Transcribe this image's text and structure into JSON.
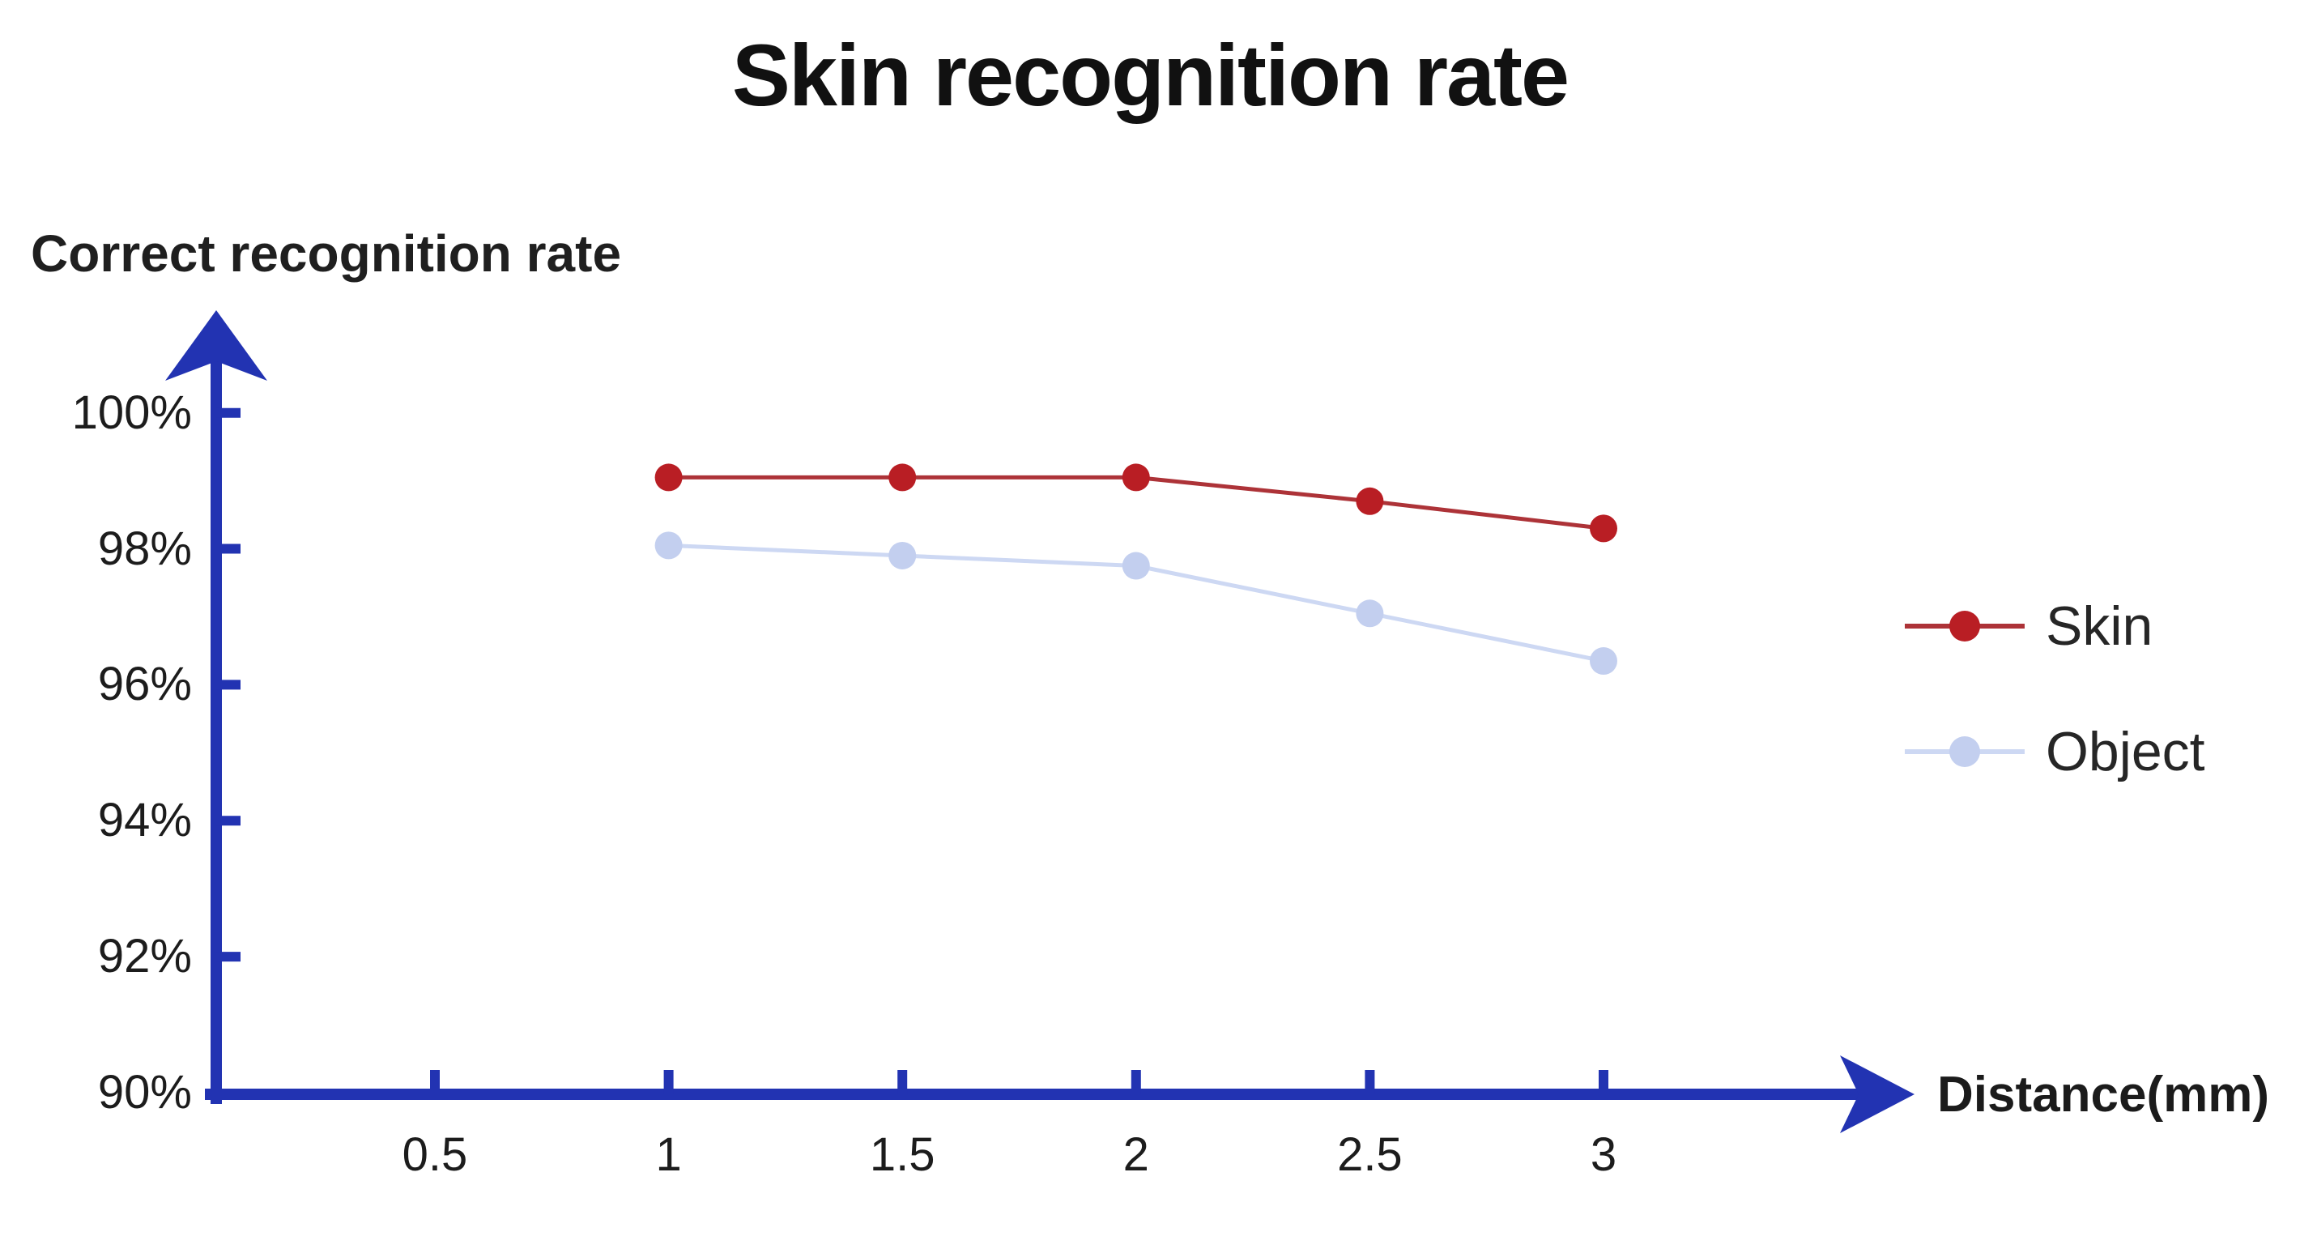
{
  "chart": {
    "title": "Skin recognition rate",
    "y_axis_title": "Correct recognition rate",
    "x_axis_title": "Distance(mm)"
  },
  "chart_data": {
    "type": "line",
    "title": "Skin recognition rate",
    "xlabel": "Distance(mm)",
    "ylabel": "Correct recognition rate",
    "x": [
      1,
      1.5,
      2,
      2.5,
      3
    ],
    "x_ticks": [
      {
        "label": "0.5",
        "value": 0.5
      },
      {
        "label": "1",
        "value": 1
      },
      {
        "label": "1.5",
        "value": 1.5
      },
      {
        "label": "2",
        "value": 2
      },
      {
        "label": "2.5",
        "value": 2.5
      },
      {
        "label": "3",
        "value": 3
      }
    ],
    "y_ticks": [
      {
        "label": "100%",
        "value": 100
      },
      {
        "label": "98%",
        "value": 98
      },
      {
        "label": "96%",
        "value": 96
      },
      {
        "label": "94%",
        "value": 94
      },
      {
        "label": "92%",
        "value": 92
      },
      {
        "label": "90%",
        "value": 90
      }
    ],
    "ylim": [
      90,
      101.5
    ],
    "xlim": [
      0,
      3.6
    ],
    "grid": false,
    "legend_position": "right",
    "unit": "%",
    "series": [
      {
        "name": "Skin",
        "color": "#B91E24",
        "line_color": "#AD3338",
        "values": [
          99.05,
          99.05,
          99.05,
          98.7,
          98.3
        ]
      },
      {
        "name": "Object",
        "color": "#C3CFEF",
        "line_color": "#CDD8F3",
        "values": [
          98.05,
          97.9,
          97.75,
          97.05,
          96.35
        ]
      }
    ],
    "colors": {
      "axis": "#2233B2",
      "text": "#1D1D1D"
    }
  }
}
